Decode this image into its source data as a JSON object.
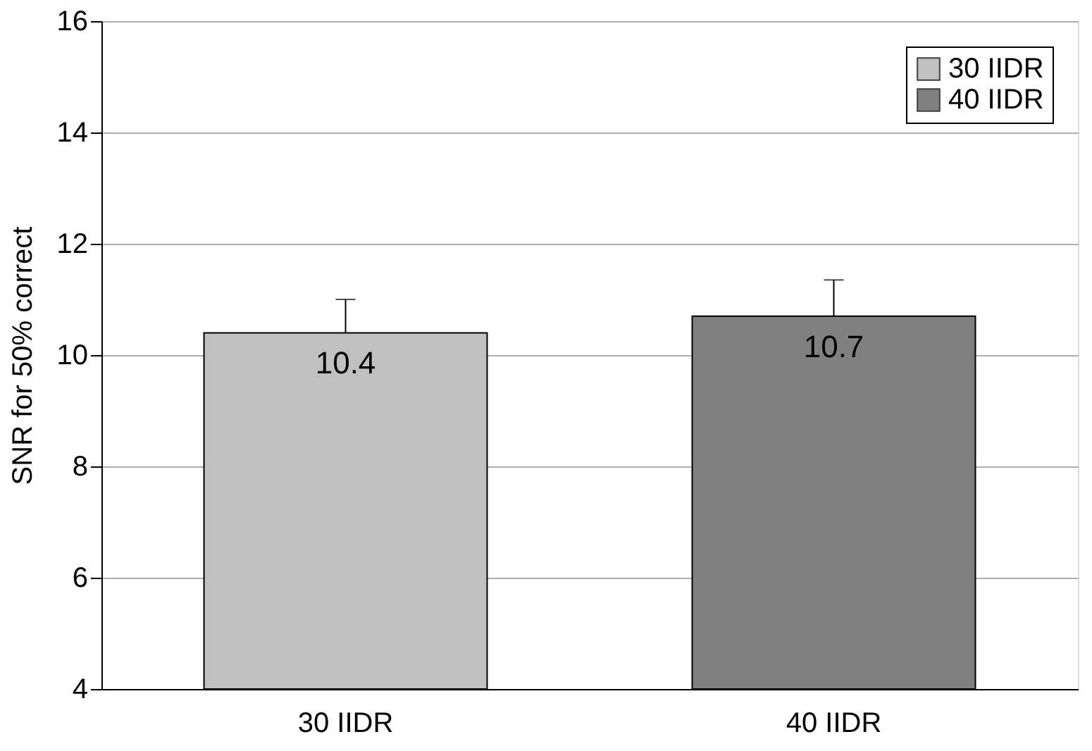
{
  "chart_data": {
    "type": "bar",
    "ylabel": "SNR for 50% correct",
    "categories": [
      "30 IIDR",
      "40 IIDR"
    ],
    "series": [
      {
        "name": "30 IIDR",
        "color": "#c0c0c0",
        "values": [
          10.4,
          null
        ],
        "errors": [
          0.6,
          null
        ]
      },
      {
        "name": "40 IIDR",
        "color": "#808080",
        "values": [
          null,
          10.7
        ],
        "errors": [
          null,
          0.65
        ]
      }
    ],
    "ylim": [
      4,
      16
    ],
    "yticks": [
      4,
      6,
      8,
      10,
      12,
      14,
      16
    ],
    "grid": "y",
    "legend": "top right",
    "data_labels": true
  }
}
